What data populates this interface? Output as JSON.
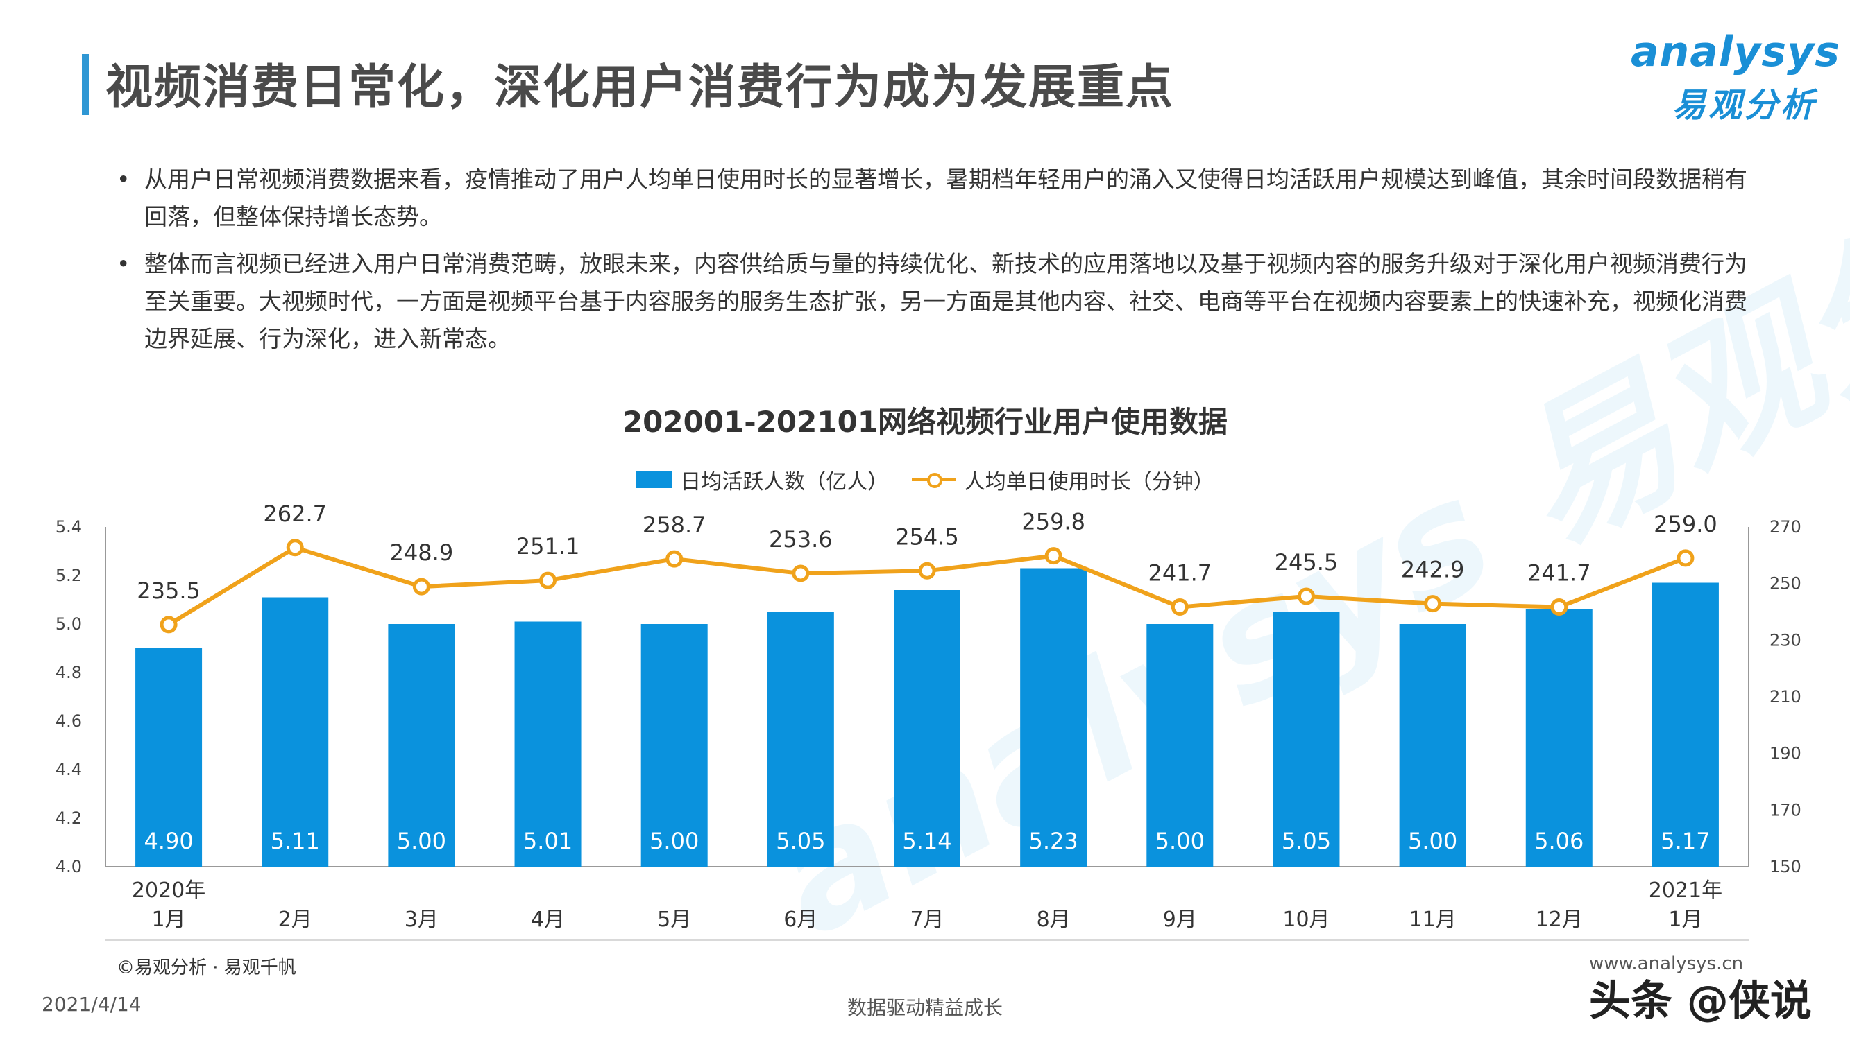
{
  "header": {
    "title": "视频消费日常化，深化用户消费行为成为发展重点"
  },
  "logo": {
    "brand_en": "analysys",
    "brand_cn": "易观分析"
  },
  "bullets": [
    "从用户日常视频消费数据来看，疫情推动了用户人均单日使用时长的显著增长，暑期档年轻用户的涌入又使得日均活跃用户规模达到峰值，其余时间段数据稍有回落，但整体保持增长态势。",
    "整体而言视频已经进入用户日常消费范畴，放眼未来，内容供给质与量的持续优化、新技术的应用落地以及基于视频内容的服务升级对于深化用户视频消费行为至关重要。大视频时代，一方面是视频平台基于内容服务的服务生态扩张，另一方面是其他内容、社交、电商等平台在视频内容要素上的快速补充，视频化消费边界延展、行为深化，进入新常态。"
  ],
  "chart_data": {
    "type": "bar",
    "title": "202001-202101网络视频行业用户使用数据",
    "categories": [
      "2020年 1月",
      "2月",
      "3月",
      "4月",
      "5月",
      "6月",
      "7月",
      "8月",
      "9月",
      "10月",
      "11月",
      "12月",
      "2021年 1月"
    ],
    "category_lines": [
      [
        "2020年",
        "1月"
      ],
      [
        "2月"
      ],
      [
        "3月"
      ],
      [
        "4月"
      ],
      [
        "5月"
      ],
      [
        "6月"
      ],
      [
        "7月"
      ],
      [
        "8月"
      ],
      [
        "9月"
      ],
      [
        "10月"
      ],
      [
        "11月"
      ],
      [
        "12月"
      ],
      [
        "2021年",
        "1月"
      ]
    ],
    "series": [
      {
        "name": "日均活跃人数（亿人）",
        "type": "bar",
        "axis": "left",
        "color": "#0a92dd",
        "values": [
          4.9,
          5.11,
          5.0,
          5.01,
          5.0,
          5.05,
          5.14,
          5.23,
          5.0,
          5.05,
          5.0,
          5.06,
          5.17
        ],
        "labels": [
          "4.90",
          "5.11",
          "5.00",
          "5.01",
          "5.00",
          "5.05",
          "5.14",
          "5.23",
          "5.00",
          "5.05",
          "5.00",
          "5.06",
          "5.17"
        ]
      },
      {
        "name": "人均单日使用时长（分钟）",
        "type": "line",
        "axis": "right",
        "color": "#f0a21b",
        "values": [
          235.5,
          262.7,
          248.9,
          251.1,
          258.7,
          253.6,
          254.5,
          259.8,
          241.7,
          245.5,
          242.9,
          241.7,
          259.0
        ],
        "labels": [
          "235.5",
          "262.7",
          "248.9",
          "251.1",
          "258.7",
          "253.6",
          "254.5",
          "259.8",
          "241.7",
          "245.5",
          "242.9",
          "241.7",
          "259.0"
        ]
      }
    ],
    "y_left": {
      "ylim": [
        4.0,
        5.4
      ],
      "ticks": [
        "4.0",
        "4.2",
        "4.4",
        "4.6",
        "4.8",
        "5.0",
        "5.2",
        "5.4"
      ]
    },
    "y_right": {
      "ylim": [
        150,
        270
      ],
      "ticks": [
        "150",
        "170",
        "190",
        "210",
        "230",
        "250",
        "270"
      ]
    },
    "grid": false,
    "legend_position": "top-center"
  },
  "footer": {
    "source": "©易观分析 · 易观千帆",
    "website": "www.analysys.cn",
    "date": "2021/4/14",
    "slogan": "数据驱动精益成长",
    "watermark": "头条 @侠说"
  }
}
